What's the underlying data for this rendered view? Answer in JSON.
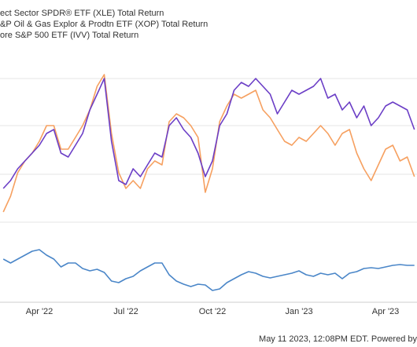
{
  "chart_data": {
    "type": "line",
    "credit": "May 11 2023, 12:08PM EDT. Powered by",
    "categories": [
      null,
      null,
      null,
      null,
      null,
      "Apr '22",
      null,
      null,
      null,
      null,
      null,
      null,
      null,
      null,
      null,
      null,
      null,
      "Jul '22",
      null,
      null,
      null,
      null,
      null,
      null,
      null,
      null,
      null,
      null,
      null,
      "Oct '22",
      null,
      null,
      null,
      null,
      null,
      null,
      null,
      null,
      null,
      null,
      null,
      "Jan '23",
      null,
      null,
      null,
      null,
      null,
      null,
      null,
      null,
      null,
      null,
      null,
      "Apr '23",
      null,
      null,
      null,
      null
    ],
    "ylim": [
      0,
      325
    ],
    "series": [
      {
        "name": "ect Sector SPDR® ETF (XLE) Total Return",
        "color": "#6b3ec6",
        "values": [
          145,
          155,
          170,
          180,
          190,
          200,
          215,
          220,
          190,
          185,
          200,
          215,
          245,
          265,
          285,
          205,
          155,
          150,
          170,
          160,
          175,
          190,
          185,
          225,
          235,
          220,
          210,
          190,
          160,
          180,
          225,
          240,
          270,
          280,
          275,
          285,
          275,
          265,
          240,
          255,
          270,
          265,
          270,
          275,
          285,
          260,
          265,
          245,
          255,
          235,
          250,
          225,
          235,
          250,
          255,
          250,
          245,
          220
        ]
      },
      {
        "name": "&P Oil & Gas Explor & Prodtn ETF (XOP) Total Return",
        "color": "#f6a060",
        "values": [
          115,
          135,
          165,
          180,
          190,
          205,
          225,
          225,
          195,
          195,
          210,
          225,
          245,
          275,
          290,
          215,
          165,
          145,
          155,
          145,
          170,
          180,
          175,
          230,
          240,
          235,
          225,
          210,
          140,
          170,
          230,
          250,
          265,
          260,
          265,
          270,
          245,
          235,
          220,
          205,
          200,
          210,
          205,
          215,
          225,
          215,
          200,
          215,
          220,
          190,
          170,
          155,
          175,
          195,
          200,
          180,
          185,
          160
        ]
      },
      {
        "name": "ore S&P 500 ETF (IVV) Total Return",
        "color": "#4a86c8",
        "values": [
          55,
          50,
          55,
          60,
          65,
          67,
          60,
          55,
          45,
          50,
          50,
          43,
          40,
          42,
          38,
          27,
          25,
          30,
          33,
          40,
          45,
          50,
          50,
          35,
          27,
          23,
          20,
          23,
          22,
          15,
          17,
          25,
          30,
          35,
          39,
          37,
          33,
          31,
          33,
          35,
          37,
          40,
          35,
          33,
          37,
          35,
          37,
          30,
          37,
          39,
          43,
          44,
          43,
          45,
          47,
          48,
          47,
          47
        ]
      }
    ]
  }
}
